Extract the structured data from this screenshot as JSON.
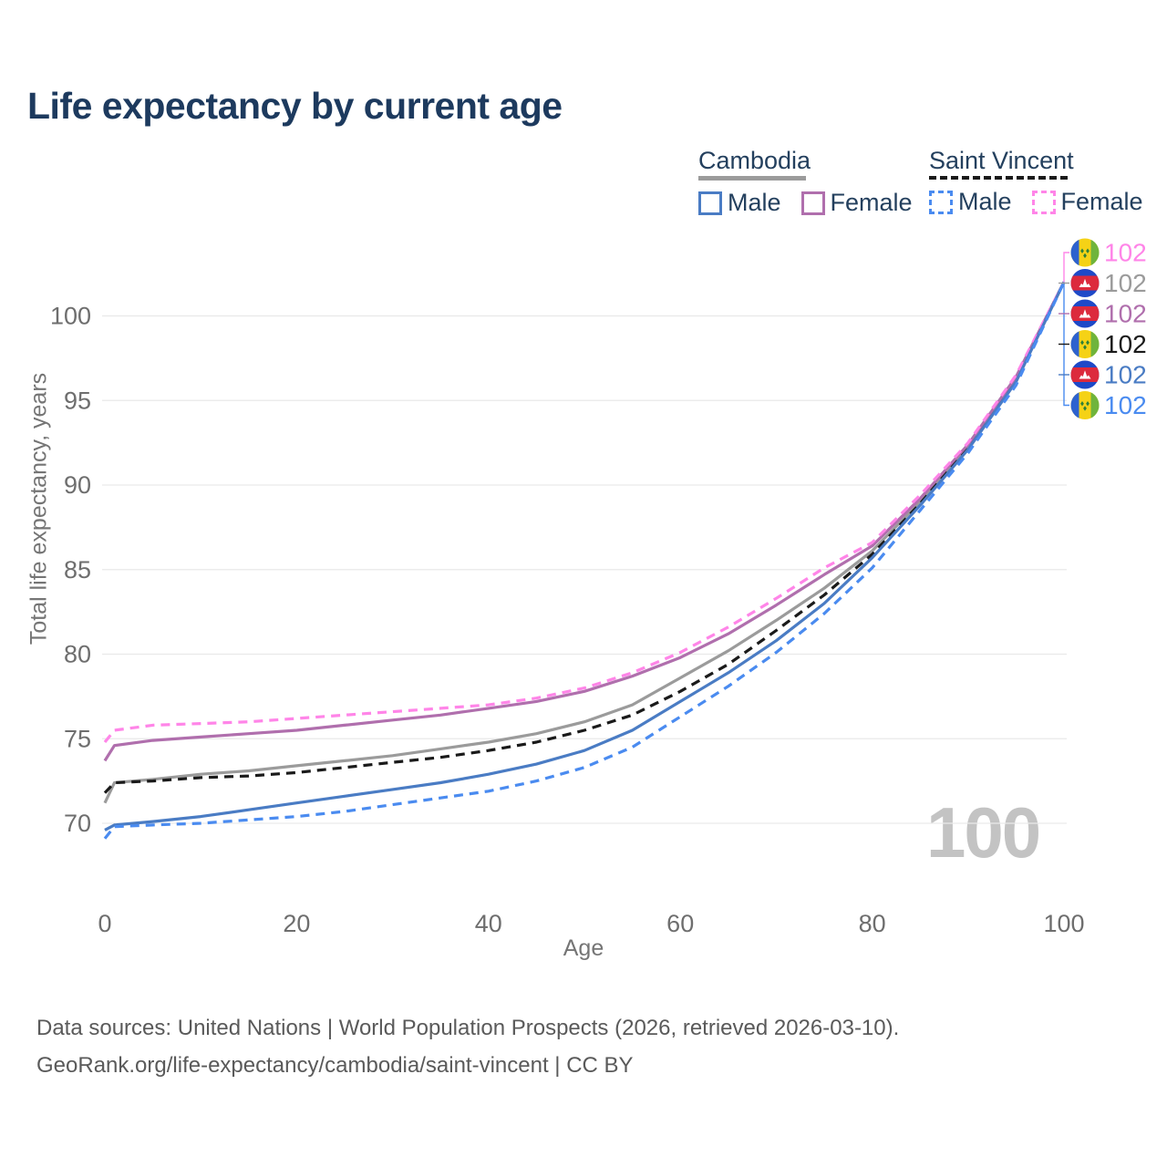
{
  "title": "Life expectancy by current age",
  "legend": {
    "groups": [
      {
        "label": "Cambodia",
        "line": {
          "color": "#9b9b9b",
          "style": "solid"
        },
        "items": [
          {
            "label": "Male",
            "color": "#4a7cc4",
            "style": "solid"
          },
          {
            "label": "Female",
            "color": "#b06fad",
            "style": "solid"
          }
        ]
      },
      {
        "label": "Saint Vincent",
        "line": {
          "color": "#1a1a1a",
          "style": "dashed"
        },
        "items": [
          {
            "label": "Male",
            "color": "#4a8bf0",
            "style": "dashed"
          },
          {
            "label": "Female",
            "color": "#ff85e8",
            "style": "dashed"
          }
        ]
      }
    ]
  },
  "chart_data": {
    "type": "line",
    "title": "Life expectancy by current age",
    "xlabel": "Age",
    "ylabel": "Total life expectancy, years",
    "xlim": [
      0,
      100
    ],
    "ylim": [
      67.5,
      103.5
    ],
    "xticks": [
      0,
      20,
      40,
      60,
      80,
      100
    ],
    "yticks": [
      70,
      75,
      80,
      85,
      90,
      95,
      100
    ],
    "grid": "horizontal",
    "legend_position": "top-right",
    "watermark": "100",
    "x": [
      0,
      1,
      5,
      10,
      15,
      20,
      25,
      30,
      35,
      40,
      45,
      50,
      55,
      60,
      65,
      70,
      75,
      80,
      85,
      90,
      95,
      100
    ],
    "series": [
      {
        "name": "Cambodia",
        "group": "cambodia",
        "sex": "total",
        "color": "#9b9b9b",
        "dash": "solid",
        "values": [
          71.2,
          72.4,
          72.6,
          72.9,
          73.1,
          73.4,
          73.7,
          74.0,
          74.4,
          74.8,
          75.3,
          76.0,
          77.0,
          78.6,
          80.2,
          82.0,
          83.9,
          86.1,
          89.0,
          92.3,
          96.3,
          102
        ]
      },
      {
        "name": "Saint Vincent",
        "group": "saint-vincent",
        "sex": "total",
        "color": "#1a1a1a",
        "dash": "dashed",
        "values": [
          71.8,
          72.4,
          72.5,
          72.7,
          72.8,
          73.0,
          73.3,
          73.6,
          73.9,
          74.3,
          74.8,
          75.5,
          76.4,
          77.8,
          79.4,
          81.4,
          83.5,
          85.9,
          88.9,
          92.2,
          96.2,
          102
        ]
      },
      {
        "name": "Cambodia Female",
        "group": "cambodia",
        "sex": "female",
        "color": "#b06fad",
        "dash": "solid",
        "values": [
          73.7,
          74.6,
          74.9,
          75.1,
          75.3,
          75.5,
          75.8,
          76.1,
          76.4,
          76.8,
          77.2,
          77.8,
          78.7,
          79.8,
          81.2,
          82.9,
          84.7,
          86.4,
          89.2,
          92.4,
          96.4,
          102
        ]
      },
      {
        "name": "Saint Vincent Female",
        "group": "saint-vincent",
        "sex": "female",
        "color": "#ff85e8",
        "dash": "dashed",
        "values": [
          74.8,
          75.5,
          75.8,
          75.9,
          76.0,
          76.2,
          76.4,
          76.6,
          76.8,
          77.0,
          77.4,
          78.0,
          78.9,
          80.1,
          81.6,
          83.3,
          85.1,
          86.6,
          89.4,
          92.5,
          96.5,
          102
        ]
      },
      {
        "name": "Cambodia Male",
        "group": "cambodia",
        "sex": "male",
        "color": "#4a7cc4",
        "dash": "solid",
        "values": [
          69.6,
          69.9,
          70.1,
          70.4,
          70.8,
          71.2,
          71.6,
          72.0,
          72.4,
          72.9,
          73.5,
          74.3,
          75.5,
          77.2,
          78.9,
          80.8,
          83.0,
          85.7,
          88.8,
          92.1,
          96.1,
          102
        ]
      },
      {
        "name": "Saint Vincent Male",
        "group": "saint-vincent",
        "sex": "male",
        "color": "#4a8bf0",
        "dash": "dashed",
        "values": [
          69.1,
          69.8,
          69.9,
          70.0,
          70.2,
          70.4,
          70.7,
          71.1,
          71.5,
          71.9,
          72.5,
          73.3,
          74.5,
          76.3,
          78.1,
          80.1,
          82.4,
          85.1,
          88.5,
          91.9,
          95.9,
          102
        ]
      }
    ],
    "end_labels": [
      {
        "flag": "saint-vincent",
        "value": "102",
        "color": "#ff85e8"
      },
      {
        "flag": "cambodia",
        "value": "102",
        "color": "#9b9b9b"
      },
      {
        "flag": "cambodia",
        "value": "102",
        "color": "#b06fad"
      },
      {
        "flag": "saint-vincent",
        "value": "102",
        "color": "#1a1a1a"
      },
      {
        "flag": "cambodia",
        "value": "102",
        "color": "#4a7cc4"
      },
      {
        "flag": "saint-vincent",
        "value": "102",
        "color": "#4a8bf0"
      }
    ]
  },
  "footer": {
    "line1": "Data sources: United Nations | World Population Prospects (2026, retrieved 2026-03-10).",
    "line2": "GeoRank.org/life-expectancy/cambodia/saint-vincent | CC BY"
  }
}
